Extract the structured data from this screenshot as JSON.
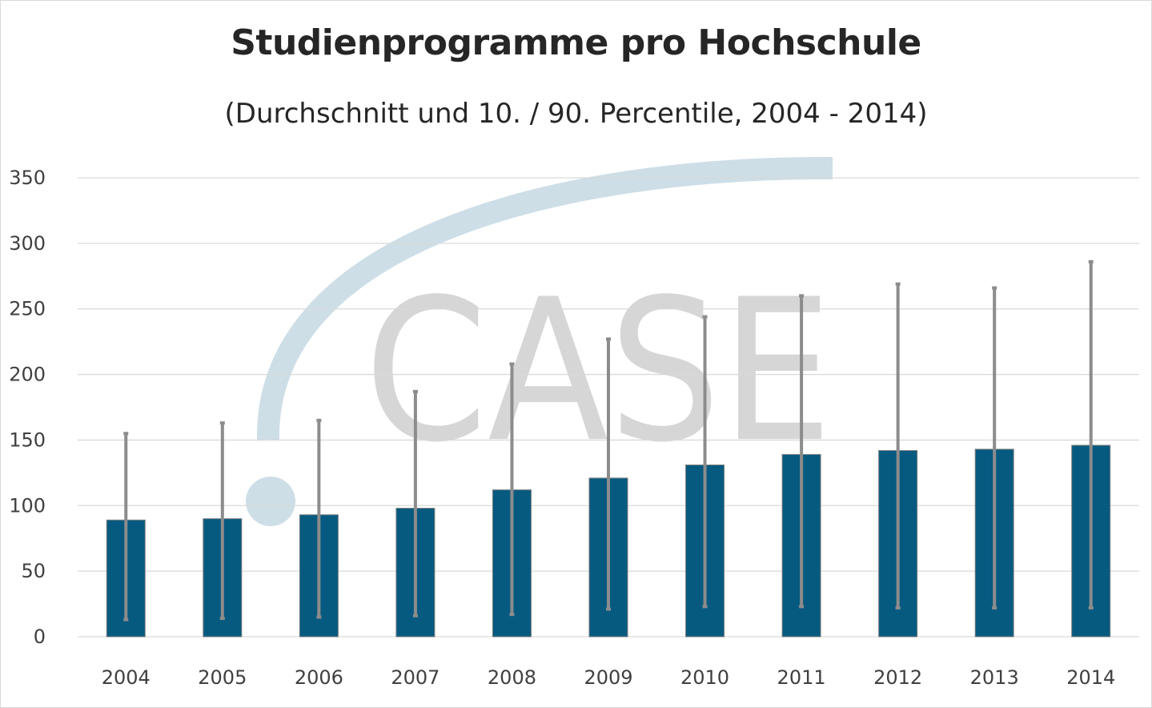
{
  "chart_data": {
    "type": "bar",
    "title": "Studienprogramme pro Hochschule",
    "subtitle": "(Durchschnitt und 10. / 90. Percentile, 2004 - 2014)",
    "categories": [
      "2004",
      "2005",
      "2006",
      "2007",
      "2008",
      "2009",
      "2010",
      "2011",
      "2012",
      "2013",
      "2014"
    ],
    "series": [
      {
        "values": [
          89,
          90,
          93,
          98,
          112,
          121,
          131,
          139,
          142,
          143,
          146
        ],
        "error_low": [
          13,
          14,
          15,
          16,
          17,
          21,
          23,
          23,
          22,
          22,
          22
        ],
        "error_high": [
          155,
          163,
          165,
          187,
          208,
          227,
          244,
          260,
          269,
          266,
          286
        ]
      }
    ],
    "ylim": [
      0,
      350
    ],
    "yticks": [
      "0",
      "50",
      "100",
      "150",
      "200",
      "250",
      "300",
      "350"
    ],
    "grid": true,
    "colors": {
      "bar": "#065a80",
      "error_bar": "#8c8c8c",
      "grid": "#d9d9d9"
    },
    "watermark": "CASE"
  }
}
